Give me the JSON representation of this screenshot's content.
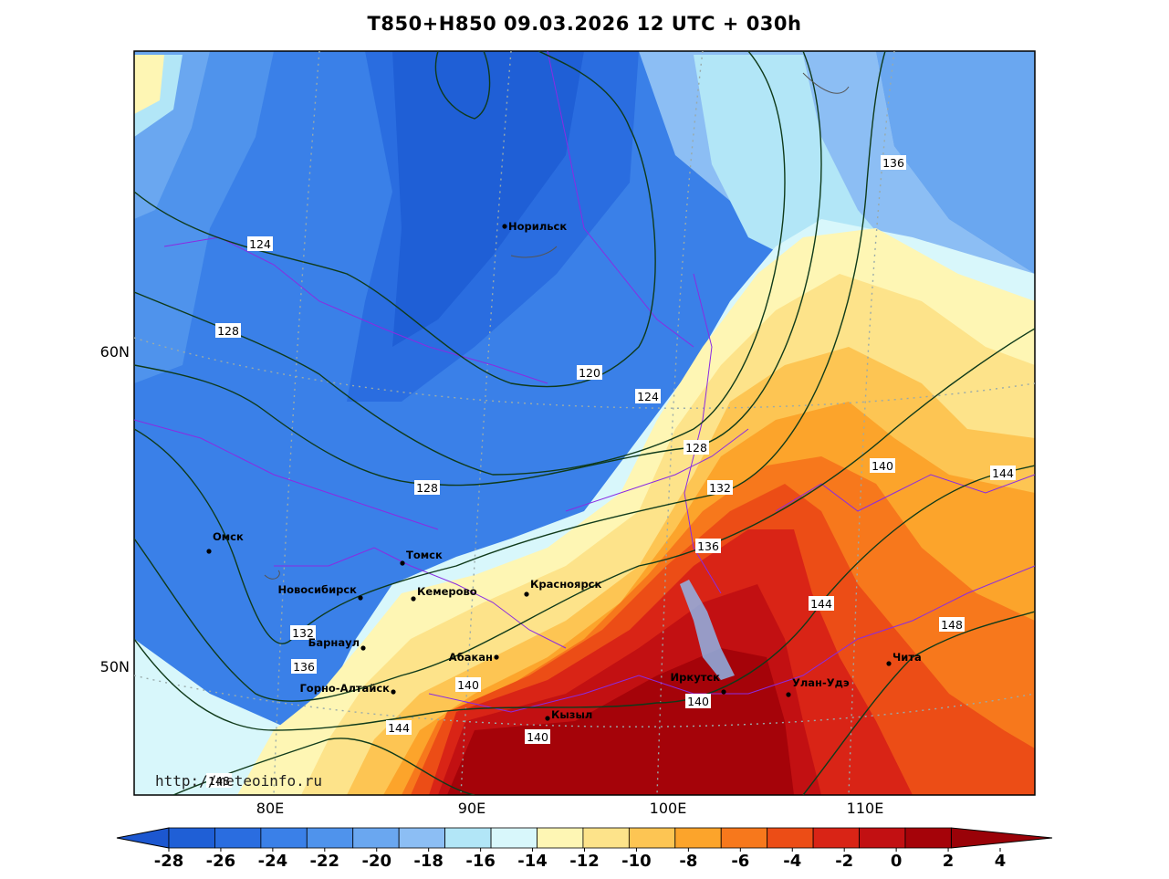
{
  "title": "T850+H850 09.03.2026 12 UTC + 030h",
  "credit": "http://meteoinfo.ru",
  "axes": {
    "longitude_ticks": [
      "80E",
      "90E",
      "100E",
      "110E"
    ],
    "latitude_ticks": [
      "60N",
      "50N"
    ]
  },
  "cities": [
    {
      "name": "Норильск",
      "icon": "city-dot-icon"
    },
    {
      "name": "Омск",
      "icon": "city-dot-icon"
    },
    {
      "name": "Томск",
      "icon": "city-dot-icon"
    },
    {
      "name": "Новосибирск",
      "icon": "city-dot-icon"
    },
    {
      "name": "Кемерово",
      "icon": "city-dot-icon"
    },
    {
      "name": "Красноярск",
      "icon": "city-dot-icon"
    },
    {
      "name": "Барнаул",
      "icon": "city-dot-icon"
    },
    {
      "name": "Абакан",
      "icon": "city-dot-icon"
    },
    {
      "name": "Горно-Алтайск",
      "icon": "city-dot-icon"
    },
    {
      "name": "Кызыл",
      "icon": "city-dot-icon"
    },
    {
      "name": "Иркутск",
      "icon": "city-dot-icon"
    },
    {
      "name": "Улан-Удэ",
      "icon": "city-dot-icon"
    },
    {
      "name": "Чита",
      "icon": "city-dot-icon"
    }
  ],
  "contour_labels": [
    "124",
    "128",
    "120",
    "124",
    "128",
    "128",
    "132",
    "136",
    "132",
    "136",
    "140",
    "144",
    "140",
    "140",
    "140",
    "144",
    "148",
    "136",
    "144",
    "148"
  ],
  "colorbar": {
    "ticks": [
      "-28",
      "-26",
      "-24",
      "-22",
      "-20",
      "-18",
      "-16",
      "-14",
      "-12",
      "-10",
      "-8",
      "-6",
      "-4",
      "-2",
      "0",
      "2",
      "4"
    ],
    "colors": [
      "#1f5fd6",
      "#2a6de0",
      "#3a80e8",
      "#4f93ec",
      "#6aa7f0",
      "#8cbef4",
      "#b2e6f7",
      "#d8f7fb",
      "#fef6b4",
      "#fde38a",
      "#fdc553",
      "#fca42b",
      "#f7781c",
      "#ec4d16",
      "#d92416",
      "#c21012",
      "#a50309"
    ],
    "under_color": "#1c57d0",
    "over_color": "#9a0208"
  }
}
